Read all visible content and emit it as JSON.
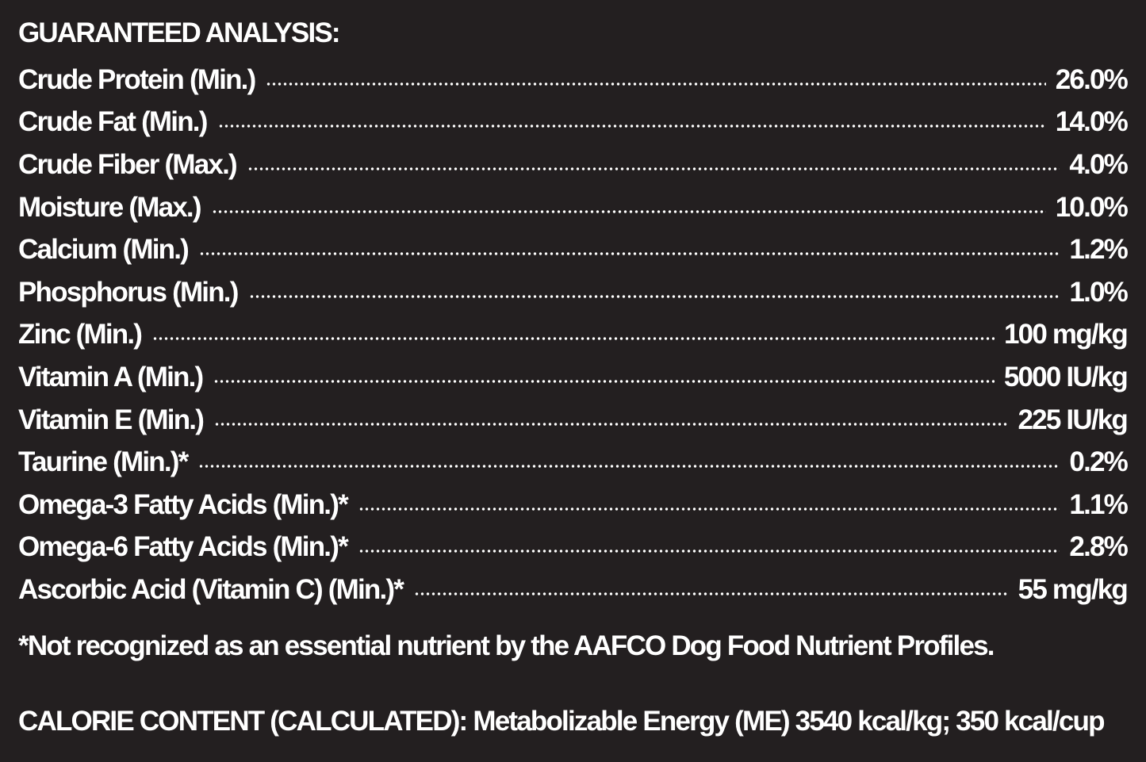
{
  "header": {
    "title": "GUARANTEED ANALYSIS:"
  },
  "rows": [
    {
      "label": "Crude Protein (Min.)",
      "value": "26.0%"
    },
    {
      "label": "Crude Fat (Min.)",
      "value": "14.0%"
    },
    {
      "label": "Crude Fiber (Max.)",
      "value": "4.0%"
    },
    {
      "label": "Moisture (Max.)",
      "value": "10.0%"
    },
    {
      "label": "Calcium (Min.)",
      "value": "1.2%"
    },
    {
      "label": "Phosphorus (Min.)",
      "value": "1.0%"
    },
    {
      "label": "Zinc (Min.)",
      "value": "100 mg/kg"
    },
    {
      "label": "Vitamin A (Min.)",
      "value": "5000 IU/kg"
    },
    {
      "label": "Vitamin E (Min.)",
      "value": "225 IU/kg"
    },
    {
      "label": "Taurine (Min.)*",
      "value": "0.2%"
    },
    {
      "label": "Omega-3 Fatty Acids (Min.)*",
      "value": "1.1%"
    },
    {
      "label": "Omega-6 Fatty Acids (Min.)*",
      "value": "2.8%"
    },
    {
      "label": "Ascorbic Acid (Vitamin C) (Min.)*",
      "value": "55 mg/kg"
    }
  ],
  "footnote": "*Not recognized as an essential nutrient by the AAFCO Dog Food Nutrient Profiles.",
  "calorie": "CALORIE CONTENT (CALCULATED): Metabolizable Energy (ME) 3540 kcal/kg; 350 kcal/cup"
}
